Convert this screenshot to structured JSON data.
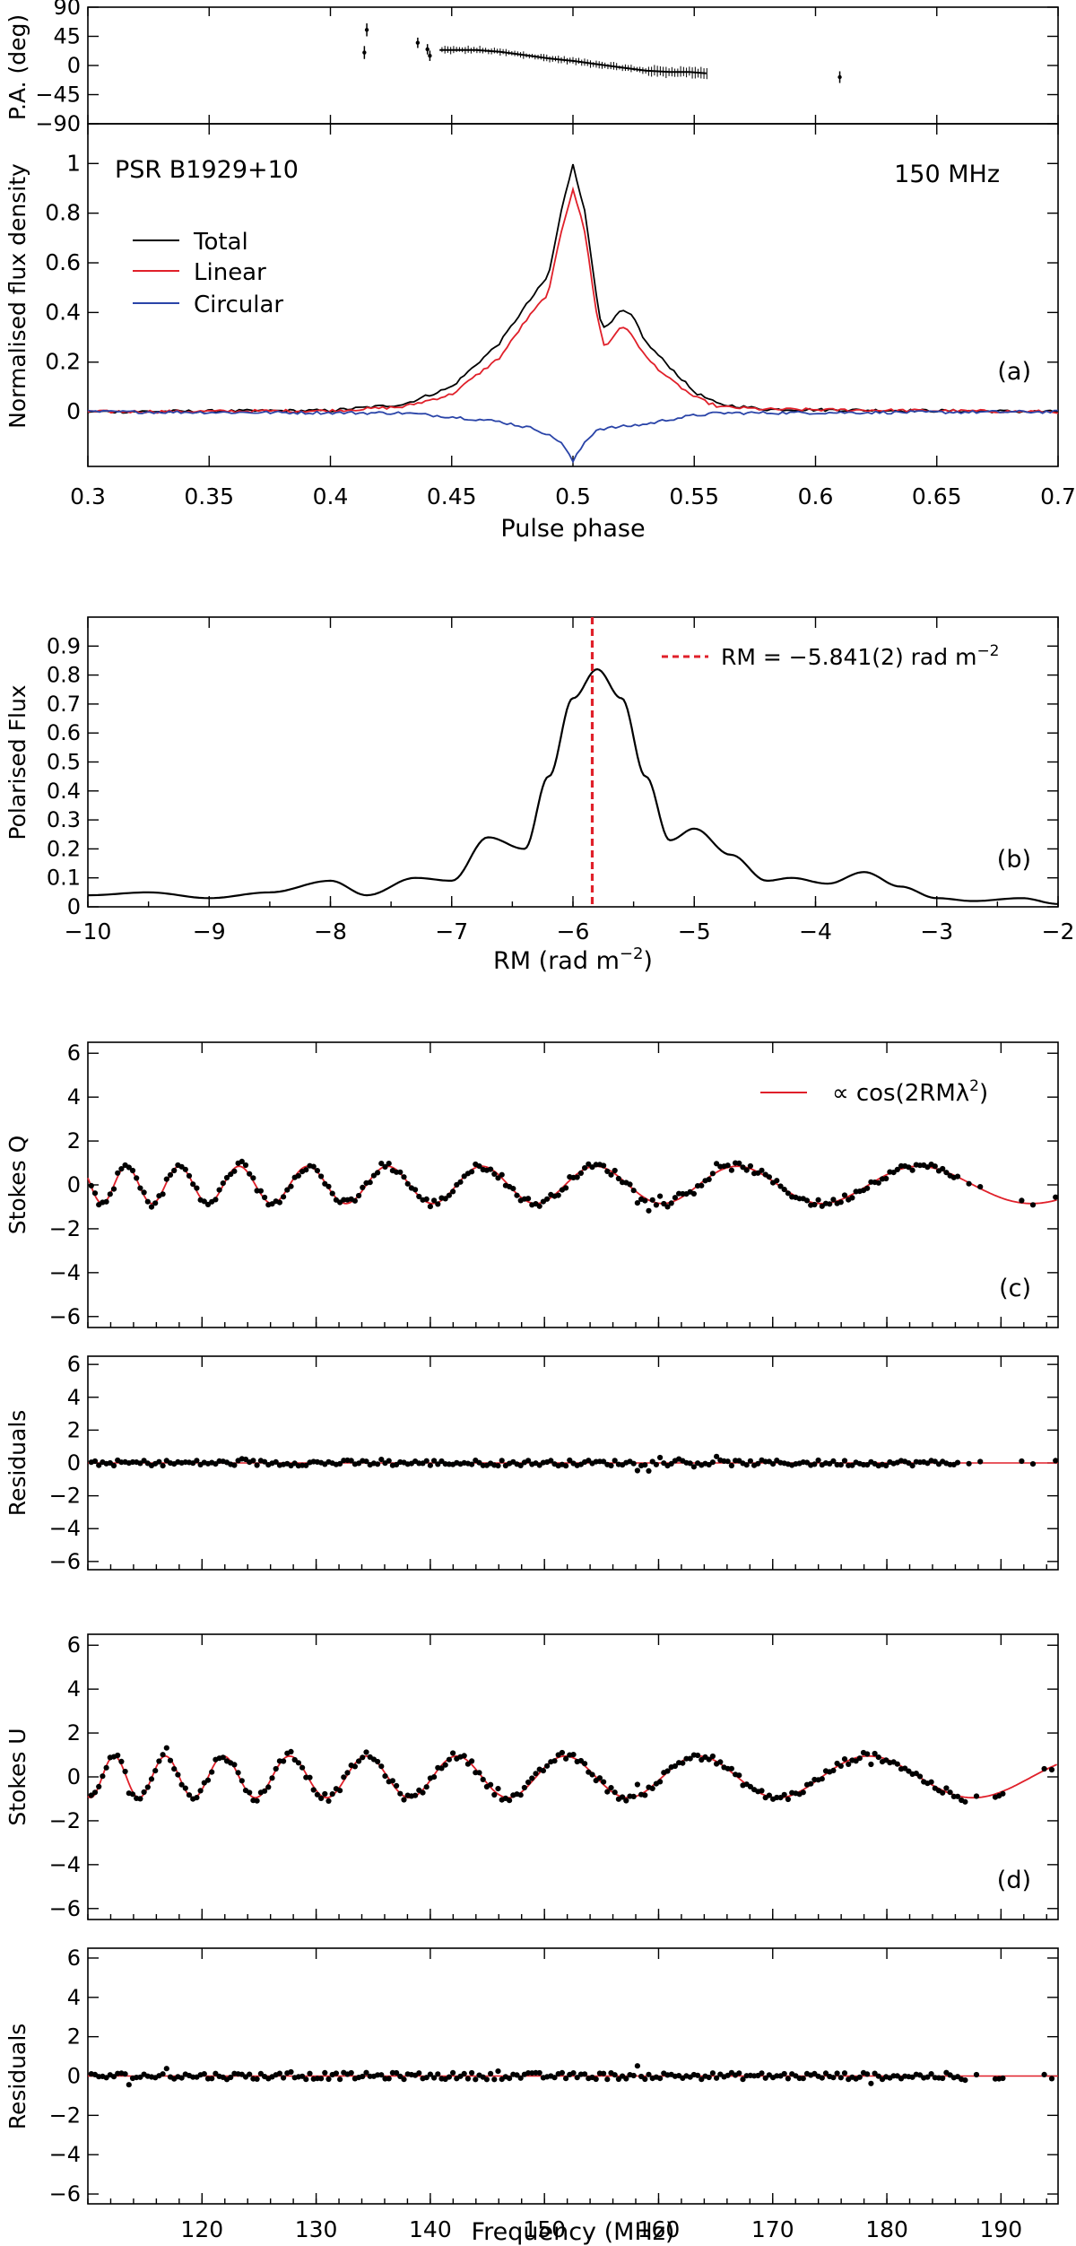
{
  "chart_data": [
    {
      "id": "a",
      "type": "line",
      "title": "PSR B1929+10",
      "annotation": "150 MHz",
      "panel_label": "(a)",
      "xlabel": "Pulse phase",
      "xlim": [
        0.3,
        0.7
      ],
      "xticks": [
        0.3,
        0.35,
        0.4,
        0.45,
        0.5,
        0.55,
        0.6,
        0.65,
        0.7
      ],
      "xtick_labels": [
        "0.3",
        "0.35",
        "0.4",
        "0.45",
        "0.5",
        "0.55",
        "0.6",
        "0.65",
        "0.7"
      ],
      "top_panel": {
        "ylabel": "P.A. (deg)",
        "ylim": [
          -90,
          90
        ],
        "yticks": [
          -90,
          -45,
          0,
          45,
          90
        ],
        "ytick_labels": [
          "−90",
          "−45",
          "0",
          "45",
          "90"
        ],
        "pa_points": [
          {
            "x": 0.414,
            "y": 20,
            "err": 10
          },
          {
            "x": 0.415,
            "y": 55,
            "err": 10
          },
          {
            "x": 0.436,
            "y": 35,
            "err": 8
          },
          {
            "x": 0.44,
            "y": 25,
            "err": 8
          },
          {
            "x": 0.441,
            "y": 15,
            "err": 8
          },
          {
            "x": 0.61,
            "y": -18,
            "err": 9
          }
        ],
        "pa_curve": [
          [
            0.445,
            24
          ],
          [
            0.46,
            24
          ],
          [
            0.47,
            21
          ],
          [
            0.48,
            16
          ],
          [
            0.49,
            11
          ],
          [
            0.5,
            7
          ],
          [
            0.51,
            2
          ],
          [
            0.52,
            -3
          ],
          [
            0.53,
            -8
          ],
          [
            0.54,
            -10
          ],
          [
            0.548,
            -10
          ],
          [
            0.555,
            -12
          ]
        ]
      },
      "ylabel": "Normalised flux density",
      "ylim": [
        -0.22,
        1.16
      ],
      "yticks": [
        0,
        0.2,
        0.4,
        0.6,
        0.8,
        1
      ],
      "ytick_labels": [
        "0",
        "0.2",
        "0.4",
        "0.6",
        "0.8",
        "1"
      ],
      "legend": [
        "Total",
        "Linear",
        "Circular"
      ],
      "legend_position": "upper-left",
      "series": [
        {
          "name": "Total",
          "color": "#000000",
          "points": [
            [
              0.3,
              0
            ],
            [
              0.4,
              0.005
            ],
            [
              0.43,
              0.03
            ],
            [
              0.45,
              0.1
            ],
            [
              0.47,
              0.28
            ],
            [
              0.48,
              0.42
            ],
            [
              0.49,
              0.55
            ],
            [
              0.495,
              0.8
            ],
            [
              0.5,
              1.0
            ],
            [
              0.505,
              0.8
            ],
            [
              0.51,
              0.45
            ],
            [
              0.512,
              0.33
            ],
            [
              0.515,
              0.35
            ],
            [
              0.52,
              0.41
            ],
            [
              0.525,
              0.38
            ],
            [
              0.53,
              0.28
            ],
            [
              0.54,
              0.18
            ],
            [
              0.55,
              0.08
            ],
            [
              0.56,
              0.03
            ],
            [
              0.58,
              0.01
            ],
            [
              0.7,
              0
            ]
          ]
        },
        {
          "name": "Linear",
          "color": "#e0202a",
          "points": [
            [
              0.3,
              0
            ],
            [
              0.4,
              0.004
            ],
            [
              0.43,
              0.02
            ],
            [
              0.45,
              0.07
            ],
            [
              0.47,
              0.22
            ],
            [
              0.48,
              0.36
            ],
            [
              0.49,
              0.48
            ],
            [
              0.495,
              0.72
            ],
            [
              0.5,
              0.9
            ],
            [
              0.505,
              0.72
            ],
            [
              0.51,
              0.38
            ],
            [
              0.513,
              0.26
            ],
            [
              0.515,
              0.28
            ],
            [
              0.52,
              0.35
            ],
            [
              0.525,
              0.3
            ],
            [
              0.53,
              0.22
            ],
            [
              0.54,
              0.13
            ],
            [
              0.55,
              0.06
            ],
            [
              0.56,
              0.02
            ],
            [
              0.58,
              0.01
            ],
            [
              0.7,
              0
            ]
          ]
        },
        {
          "name": "Circular",
          "color": "#2a44a8",
          "points": [
            [
              0.3,
              0
            ],
            [
              0.43,
              -0.005
            ],
            [
              0.45,
              -0.02
            ],
            [
              0.47,
              -0.04
            ],
            [
              0.485,
              -0.07
            ],
            [
              0.495,
              -0.12
            ],
            [
              0.5,
              -0.2
            ],
            [
              0.505,
              -0.12
            ],
            [
              0.51,
              -0.07
            ],
            [
              0.52,
              -0.06
            ],
            [
              0.53,
              -0.05
            ],
            [
              0.54,
              -0.03
            ],
            [
              0.55,
              -0.015
            ],
            [
              0.56,
              -0.005
            ],
            [
              0.7,
              0
            ]
          ]
        }
      ]
    },
    {
      "id": "b",
      "type": "line",
      "panel_label": "(b)",
      "xlabel": "RM (rad m−2)",
      "xlabel_main": "RM (rad m",
      "xlabel_sup": "−2",
      "xlabel_tail": ")",
      "ylabel": "Polarised Flux",
      "xlim": [
        -10,
        -2
      ],
      "ylim": [
        0,
        1.0
      ],
      "xticks": [
        -10,
        -9,
        -8,
        -7,
        -6,
        -5,
        -4,
        -3,
        -2
      ],
      "xtick_labels": [
        "−10",
        "−9",
        "−8",
        "−7",
        "−6",
        "−5",
        "−4",
        "−3",
        "−2"
      ],
      "yticks": [
        0,
        0.1,
        0.2,
        0.3,
        0.4,
        0.5,
        0.6,
        0.7,
        0.8,
        0.9
      ],
      "ytick_labels": [
        "0",
        "0.1",
        "0.2",
        "0.3",
        "0.4",
        "0.5",
        "0.6",
        "0.7",
        "0.8",
        "0.9"
      ],
      "legend_main": "RM = −5.841(2) rad m",
      "legend_sup": "−2",
      "rm_marker": -5.841,
      "marker_color": "#e0202a",
      "points": [
        [
          -10,
          0.04
        ],
        [
          -9.5,
          0.05
        ],
        [
          -9,
          0.03
        ],
        [
          -8.5,
          0.05
        ],
        [
          -8,
          0.09
        ],
        [
          -7.7,
          0.04
        ],
        [
          -7.3,
          0.1
        ],
        [
          -7,
          0.09
        ],
        [
          -6.7,
          0.24
        ],
        [
          -6.4,
          0.2
        ],
        [
          -6.2,
          0.45
        ],
        [
          -6,
          0.72
        ],
        [
          -5.8,
          0.82
        ],
        [
          -5.6,
          0.72
        ],
        [
          -5.4,
          0.45
        ],
        [
          -5.2,
          0.23
        ],
        [
          -5,
          0.27
        ],
        [
          -4.7,
          0.18
        ],
        [
          -4.4,
          0.09
        ],
        [
          -4.2,
          0.1
        ],
        [
          -3.9,
          0.08
        ],
        [
          -3.6,
          0.12
        ],
        [
          -3.3,
          0.07
        ],
        [
          -3,
          0.03
        ],
        [
          -2.7,
          0.02
        ],
        [
          -2.3,
          0.03
        ],
        [
          -2,
          0.01
        ]
      ]
    },
    {
      "id": "c",
      "type": "scatter",
      "panel_label": "(c)",
      "ylabel": "Stokes Q",
      "xlim": [
        110,
        195
      ],
      "ylim": [
        -6.5,
        6.5
      ],
      "yticks": [
        -6,
        -4,
        -2,
        0,
        2,
        4,
        6
      ],
      "ytick_labels": [
        "−6",
        "−4",
        "−2",
        "0",
        "2",
        "4",
        "6"
      ],
      "legend_main": "∝ cos(2RMλ",
      "legend_sup": "2",
      "legend_tail": ")",
      "fit_color": "#e0202a",
      "fit_phase": 0.0,
      "amplitude": 0.85,
      "rm": -5.841
    },
    {
      "id": "c_residuals",
      "type": "scatter",
      "ylabel": "Residuals",
      "xlim": [
        110,
        195
      ],
      "ylim": [
        -6.5,
        6.5
      ],
      "yticks": [
        -6,
        -4,
        -2,
        0,
        2,
        4,
        6
      ],
      "ytick_labels": [
        "−6",
        "−4",
        "−2",
        "0",
        "2",
        "4",
        "6"
      ]
    },
    {
      "id": "d",
      "type": "scatter",
      "panel_label": "(d)",
      "ylabel": "Stokes U",
      "xlim": [
        110,
        195
      ],
      "ylim": [
        -6.5,
        6.5
      ],
      "yticks": [
        -6,
        -4,
        -2,
        0,
        2,
        4,
        6
      ],
      "ytick_labels": [
        "−6",
        "−4",
        "−2",
        "0",
        "2",
        "4",
        "6"
      ],
      "fit_color": "#e0202a",
      "fit_phase": 1.5708,
      "amplitude": 0.95,
      "rm": -5.841
    },
    {
      "id": "d_residuals",
      "type": "scatter",
      "ylabel": "Residuals",
      "xlabel": "Frequency (MHz)",
      "xlim": [
        110,
        195
      ],
      "ylim": [
        -6.5,
        6.5
      ],
      "xticks": [
        120,
        130,
        140,
        150,
        160,
        170,
        180,
        190
      ],
      "xtick_labels": [
        "120",
        "130",
        "140",
        "150",
        "160",
        "170",
        "180",
        "190"
      ],
      "yticks": [
        -6,
        -4,
        -2,
        0,
        2,
        4,
        6
      ],
      "ytick_labels": [
        "−6",
        "−4",
        "−2",
        "0",
        "2",
        "4",
        "6"
      ]
    }
  ]
}
